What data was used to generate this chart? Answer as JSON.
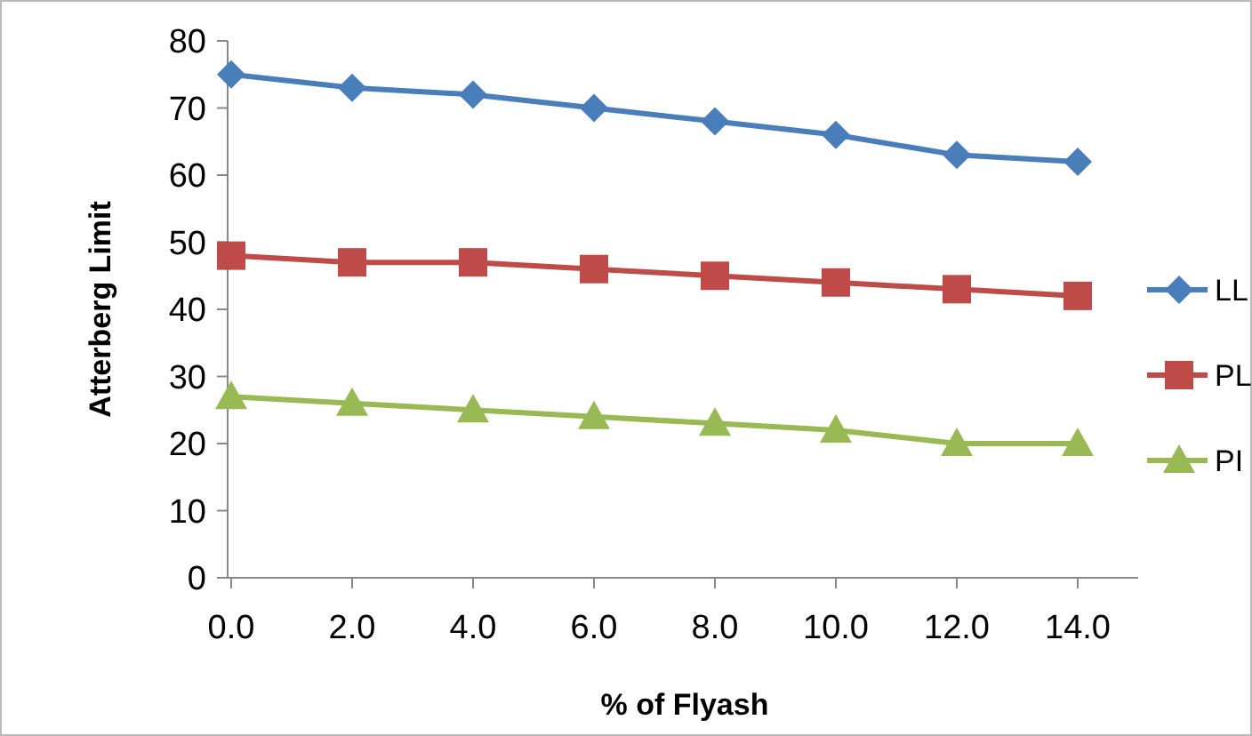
{
  "chart_data": {
    "type": "line",
    "xlabel": "% of Flyash",
    "ylabel": "Atterberg Limit",
    "x": [
      0,
      2,
      4,
      6,
      8,
      10,
      12,
      14
    ],
    "xlim": [
      0,
      15
    ],
    "xticks": [
      {
        "value": 0,
        "label": "0.0"
      },
      {
        "value": 2,
        "label": "2.0"
      },
      {
        "value": 4,
        "label": "4.0"
      },
      {
        "value": 6,
        "label": "6.0"
      },
      {
        "value": 8,
        "label": "8.0"
      },
      {
        "value": 10,
        "label": "10.0"
      },
      {
        "value": 12,
        "label": "12.0"
      },
      {
        "value": 14,
        "label": "14.0"
      }
    ],
    "ylim": [
      0,
      80
    ],
    "yticks": [
      0,
      10,
      20,
      30,
      40,
      50,
      60,
      70,
      80
    ],
    "grid": false,
    "legend": "right",
    "series": [
      {
        "name": "LL",
        "color": "#4a7ebb",
        "marker": "diamond",
        "values": [
          75,
          73,
          72,
          70,
          68,
          66,
          63,
          62
        ]
      },
      {
        "name": "PL",
        "color": "#be4b48",
        "marker": "square",
        "values": [
          48,
          47,
          47,
          46,
          45,
          44,
          43,
          42
        ]
      },
      {
        "name": "PI",
        "color": "#98b954",
        "marker": "triangle",
        "values": [
          27,
          26,
          25,
          24,
          23,
          22,
          20,
          20
        ]
      }
    ]
  }
}
